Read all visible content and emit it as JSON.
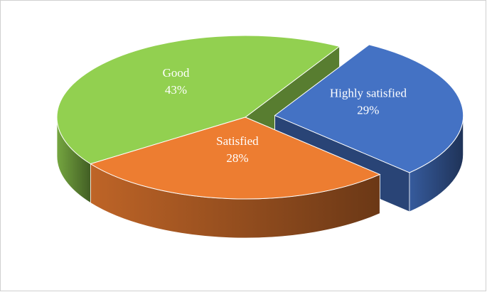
{
  "chart_data": {
    "type": "pie3d",
    "categories": [
      "Good",
      "Satisfied",
      "Highly satisfied"
    ],
    "values": [
      43,
      28,
      29
    ],
    "value_labels": [
      "43%",
      "28%",
      "29%"
    ],
    "colors": [
      "#92d050",
      "#ed7d31",
      "#4472c4"
    ],
    "exploded": [
      false,
      false,
      true
    ]
  }
}
